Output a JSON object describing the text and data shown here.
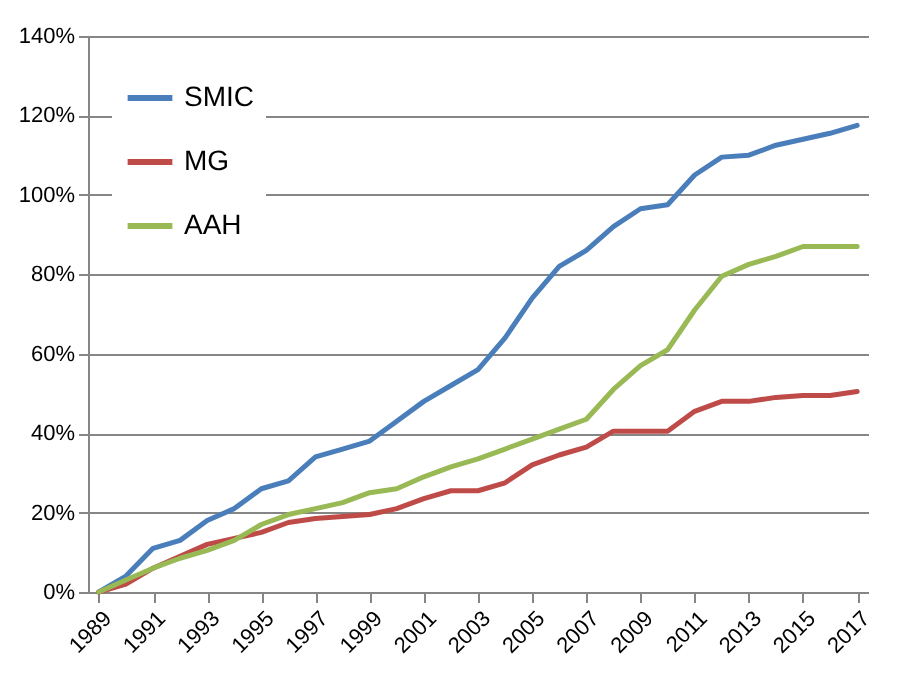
{
  "chart_data": {
    "type": "line",
    "x": [
      1989,
      1990,
      1991,
      1992,
      1993,
      1994,
      1995,
      1996,
      1997,
      1998,
      1999,
      2000,
      2001,
      2002,
      2003,
      2004,
      2005,
      2006,
      2007,
      2008,
      2009,
      2010,
      2011,
      2012,
      2013,
      2014,
      2015,
      2016,
      2017
    ],
    "series": [
      {
        "name": "SMIC",
        "color": "#4a7ebb",
        "values": [
          0,
          4,
          11,
          13,
          18,
          21,
          26,
          28,
          34,
          36,
          38,
          43,
          48,
          52,
          56,
          64,
          74,
          82,
          86,
          92,
          96.5,
          97.5,
          105,
          109.5,
          110,
          112.5,
          114,
          115.5,
          117.5
        ]
      },
      {
        "name": "MG",
        "color": "#be4b48",
        "values": [
          0,
          2,
          6,
          9,
          12,
          13.5,
          15,
          17.5,
          18.5,
          19,
          19.5,
          21,
          23.5,
          25.5,
          25.5,
          27.5,
          32,
          34.5,
          36.5,
          40.5,
          40.5,
          40.5,
          45.5,
          48,
          48,
          49,
          49.5,
          49.5,
          50.5
        ]
      },
      {
        "name": "AAH",
        "color": "#98b954",
        "values": [
          0,
          3,
          6,
          8.5,
          10.5,
          13,
          17,
          19.5,
          21,
          22.5,
          25,
          26,
          29,
          31.5,
          33.5,
          36,
          38.5,
          41,
          43.5,
          51,
          57,
          61,
          71,
          79.5,
          82.5,
          84.5,
          87,
          87,
          87
        ]
      }
    ],
    "xlim": [
      1988.6,
      2017.4
    ],
    "xticks": [
      1989,
      1991,
      1993,
      1995,
      1997,
      1999,
      2001,
      2003,
      2005,
      2007,
      2009,
      2011,
      2013,
      2015,
      2017
    ],
    "ylim": [
      0,
      140
    ],
    "yticks": [
      {
        "value": 0,
        "label": "0%"
      },
      {
        "value": 20,
        "label": "20%"
      },
      {
        "value": 40,
        "label": "40%"
      },
      {
        "value": 60,
        "label": "60%"
      },
      {
        "value": 80,
        "label": "80%"
      },
      {
        "value": 100,
        "label": "100%"
      },
      {
        "value": 120,
        "label": "120%"
      },
      {
        "value": 140,
        "label": "140%"
      }
    ],
    "grid": "y",
    "legend": "top left",
    "marker": "none",
    "line_style": "solid"
  }
}
